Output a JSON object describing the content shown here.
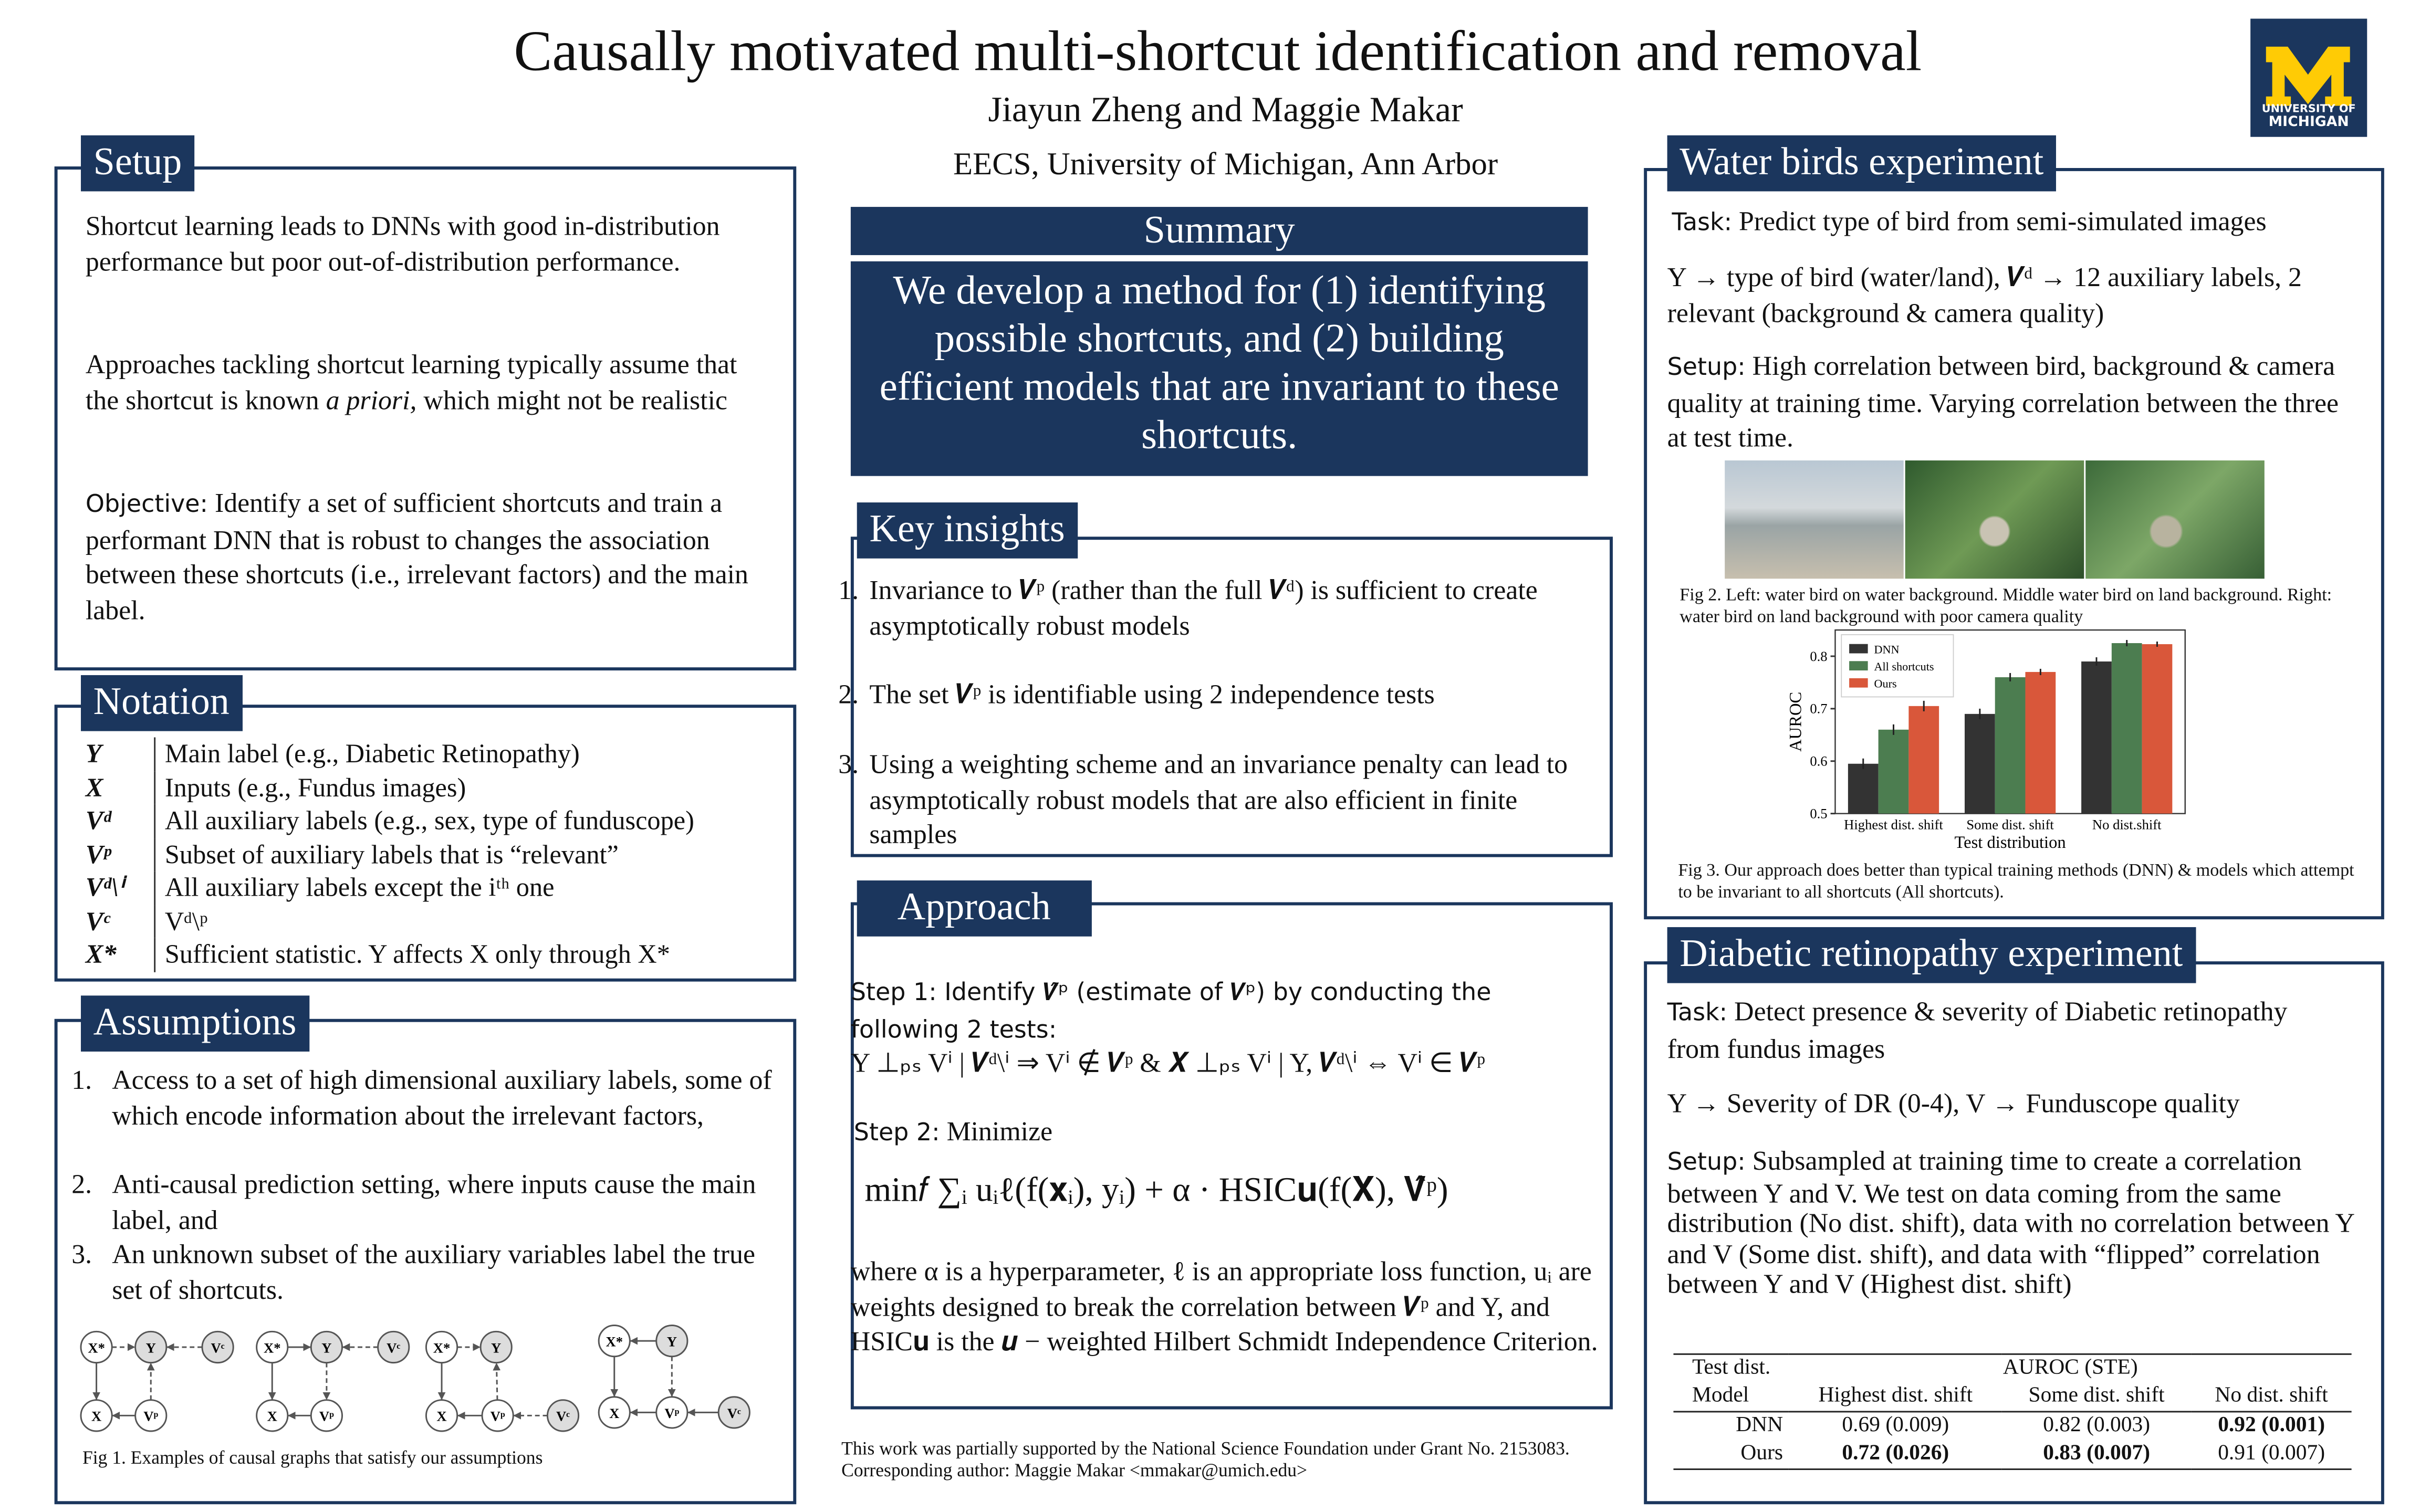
{
  "header": {
    "title": "Causally motivated multi-shortcut identification and removal",
    "authors": "Jiayun Zheng and Maggie Makar",
    "affiliation": "EECS, University of Michigan, Ann Arbor",
    "logo_lines": [
      "UNIVERSITY OF",
      "MICHIGAN"
    ]
  },
  "setup": {
    "heading": "Setup",
    "p1": "Shortcut learning leads to DNNs with good in-distribution performance but poor out-of-distribution performance.",
    "p2_start": "Approaches tackling shortcut learning typically assume that the shortcut is known ",
    "p2_italic": "a priori,",
    "p2_end": " which might not be realistic",
    "objective_label": "Objective:",
    "objective_text": " Identify a set of sufficient shortcuts and train a performant DNN that is robust to changes the association between these shortcuts (i.e., irrelevant factors) and the main label."
  },
  "notation": {
    "heading": "Notation",
    "rows": [
      [
        "Y",
        "Main label (e.g., Diabetic Retinopathy)"
      ],
      [
        "X",
        "Inputs (e.g., Fundus images)"
      ],
      [
        "Vᵈ",
        "All auxiliary labels (e.g., sex, type of funduscope)"
      ],
      [
        "Vᵖ",
        "Subset of auxiliary labels that is “relevant”"
      ],
      [
        "Vᵈ\\ⁱ",
        "All auxiliary labels except the iᵗʰ one"
      ],
      [
        "Vᶜ",
        "Vᵈ\\ᵖ"
      ],
      [
        "X*",
        "Sufficient statistic. Y affects X only through X*"
      ]
    ]
  },
  "assumptions": {
    "heading": "Assumptions",
    "items": [
      {
        "num": "1.",
        "text": "Access to a set of high dimensional auxiliary labels, some of which encode information about the irrelevant factors,"
      },
      {
        "num": "2.",
        "text": "Anti-causal prediction setting, where inputs cause the main label, and"
      },
      {
        "num": "3.",
        "text": "An unknown subset of the auxiliary variables label the true set of shortcuts."
      }
    ],
    "fig1": {
      "graphs": [
        [
          "X*",
          "Y",
          "Vᶜ",
          "X",
          "Vᵖ"
        ],
        [
          "X*",
          "Y",
          "Vᶜ",
          "X",
          "Vᵖ"
        ],
        [
          "X*",
          "Y",
          "X",
          "Vᵖ",
          "Vᶜ"
        ],
        [
          "X*",
          "Y",
          "X",
          "Vᵖ",
          "Vᶜ"
        ]
      ],
      "caption": "Fig 1. Examples of causal graphs that satisfy our assumptions"
    }
  },
  "summary": {
    "heading": "Summary",
    "text": "We develop a method for (1) identifying possible shortcuts, and (2) building efficient models that are invariant to these shortcuts."
  },
  "key_insights": {
    "heading": "Key insights",
    "items": [
      {
        "num": "1.",
        "text": "Invariance to 𝑽ᵖ (rather than the full 𝑽ᵈ) is sufficient to create asymptotically robust models"
      },
      {
        "num": "2.",
        "text": "The set 𝑽ᵖ is identifiable using 2 independence tests"
      },
      {
        "num": "3.",
        "text": "Using a weighting scheme and an invariance penalty can lead to asymptotically robust models that are also efficient in finite samples"
      }
    ]
  },
  "approach": {
    "heading": "Approach",
    "step1_label": "Step 1:",
    "step1_text": " Identify 𝑽̂ᵖ  (estimate of 𝑽ᵖ) by conducting the following 2 tests:",
    "tests": "Y ⊥ₚₛ Vⁱ | 𝑽ᵈ\\ⁱ ⇒ Vⁱ ∉ 𝑽ᵖ & 𝑿 ⊥ₚₛ Vⁱ | Y, 𝑽ᵈ\\ⁱ ⇔ Vⁱ ∈ 𝑽ᵖ",
    "step2_label": "Step 2:",
    "step2_text": " Minimize",
    "equation": "min𝑓 ∑ᵢ uᵢℓ(f(𝐱ᵢ), yᵢ) + α · HSIC𝐮(f(𝐗), 𝐕̂ᵖ)",
    "where": "where α is a hyperparameter, ℓ is an appropriate loss function, uᵢ are weights designed to break the correlation between 𝑽ᵖ and Y, and HSIC𝐮 is the 𝒖 − weighted Hilbert Schmidt Independence Criterion."
  },
  "footnote": {
    "funding": "This work was partially supported by the National Science Foundation under Grant No. 2153083.",
    "contact": "Corresponding author: Maggie Makar <mmakar@umich.edu>"
  },
  "water_birds": {
    "heading": "Water birds experiment",
    "task_label": "Task:",
    "task_text": " Predict type of bird from semi-simulated images",
    "labels_text": "Y → type of bird (water/land), 𝑽ᵈ → 12 auxiliary labels, 2 relevant (background & camera quality)",
    "setup_label": "Setup:",
    "setup_text": " High correlation between bird, background & camera quality at training time. Varying correlation between the three at test time.",
    "fig2_caption": "Fig 2. Left: water bird on water background. Middle water bird on land background. Right: water bird on land background with poor camera quality",
    "fig3": {
      "type": "bar",
      "categories": [
        "Highest dist. shift",
        "Some dist. shift",
        "No dist.shift"
      ],
      "series": [
        {
          "name": "DNN",
          "color": "#333333",
          "values": [
            0.595,
            0.69,
            0.79
          ],
          "errors": [
            0.01,
            0.01,
            0.008
          ]
        },
        {
          "name": "All shortcuts",
          "color": "#4c7d50",
          "values": [
            0.66,
            0.76,
            0.825
          ],
          "errors": [
            0.01,
            0.008,
            0.006
          ]
        },
        {
          "name": "Ours",
          "color": "#d9573a",
          "values": [
            0.705,
            0.77,
            0.823
          ],
          "errors": [
            0.01,
            0.006,
            0.005
          ]
        }
      ],
      "ylim": [
        0.5,
        0.85
      ],
      "yticks": [
        0.5,
        0.6,
        0.7,
        0.8
      ],
      "xlabel": "Test distribution",
      "ylabel": "AUROC"
    },
    "fig3_caption": "Fig 3. Our approach does better than typical training methods (DNN) & models which attempt to be invariant to all shortcuts (All shortcuts)."
  },
  "diabetic_retinopathy": {
    "heading": "Diabetic retinopathy experiment",
    "task_label": "Task:",
    "task_text": " Detect presence & severity of Diabetic retinopathy from fundus images",
    "labels_text": "Y → Severity of DR (0-4), V → Funduscope quality",
    "setup_label": "Setup:",
    "setup_text": " Subsampled at training time to create a correlation between Y and V. We test on data coming from the same distribution (No dist. shift), data with no correlation between Y and V (Some dist. shift), and data with “flipped” correlation between Y and V (Highest dist. shift)",
    "table": {
      "corner_top": "Test dist.",
      "corner_bottom": "Model",
      "group": "AUROC (STE)",
      "columns": [
        "Highest dist. shift",
        "Some dist. shift",
        "No dist. shift"
      ],
      "rows": [
        [
          "DNN",
          "0.69 (0.009)",
          "0.82 (0.003)",
          "0.92 (0.001)"
        ],
        [
          "Ours",
          "0.72 (0.026)",
          "0.83 (0.007)",
          "0.91 (0.007)"
        ]
      ]
    }
  }
}
